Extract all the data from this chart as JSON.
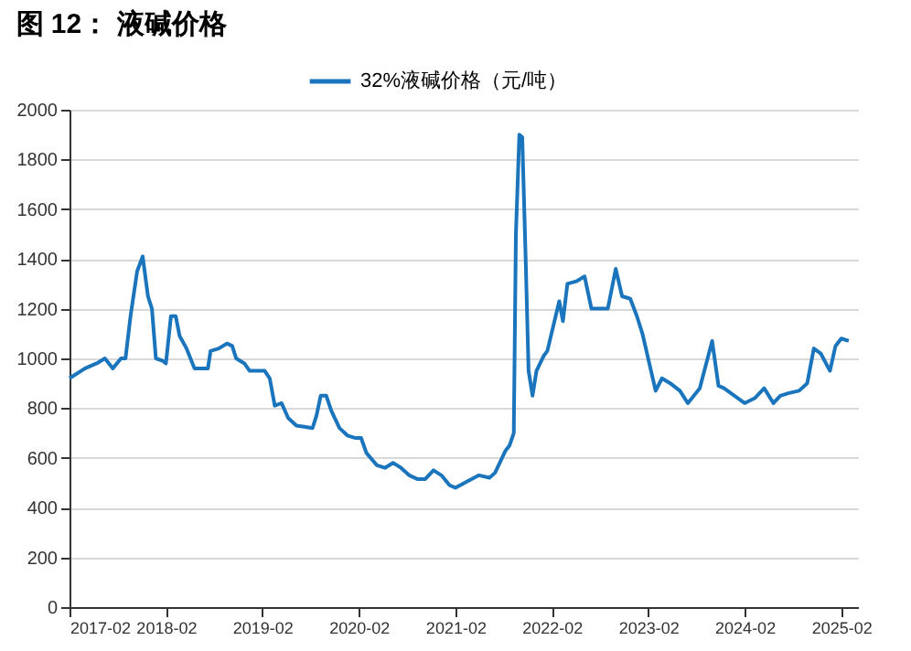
{
  "chart_data": {
    "type": "line",
    "title": "图 12：  液碱价格",
    "x": [
      "2017-02-01",
      "2017-04-01",
      "2017-05-15",
      "2017-06-15",
      "2017-07-15",
      "2017-08-15",
      "2017-09-01",
      "2017-09-20",
      "2017-10-15",
      "2017-11-05",
      "2017-11-25",
      "2017-12-10",
      "2017-12-25",
      "2018-01-20",
      "2018-02-01",
      "2018-02-20",
      "2018-03-10",
      "2018-03-25",
      "2018-04-20",
      "2018-05-20",
      "2018-06-20",
      "2018-07-10",
      "2018-07-20",
      "2018-08-20",
      "2018-09-20",
      "2018-10-10",
      "2018-10-25",
      "2018-11-25",
      "2018-12-15",
      "2019-01-15",
      "2019-02-10",
      "2019-03-01",
      "2019-03-20",
      "2019-04-15",
      "2019-05-10",
      "2019-06-10",
      "2019-07-10",
      "2019-08-10",
      "2019-08-25",
      "2019-09-10",
      "2019-10-01",
      "2019-10-20",
      "2019-11-20",
      "2019-12-20",
      "2020-01-20",
      "2020-02-10",
      "2020-03-01",
      "2020-04-10",
      "2020-05-10",
      "2020-06-10",
      "2020-07-10",
      "2020-08-10",
      "2020-09-10",
      "2020-10-10",
      "2020-11-10",
      "2020-12-10",
      "2021-01-10",
      "2021-02-01",
      "2021-05-01",
      "2021-06-10",
      "2021-07-01",
      "2021-08-10",
      "2021-08-25",
      "2021-09-10",
      "2021-09-18",
      "2021-10-01",
      "2021-10-12",
      "2021-10-25",
      "2021-11-05",
      "2021-11-20",
      "2021-12-05",
      "2022-01-01",
      "2022-01-15",
      "2022-03-01",
      "2022-03-15",
      "2022-04-01",
      "2022-05-05",
      "2022-06-05",
      "2022-07-01",
      "2022-09-01",
      "2022-10-01",
      "2022-10-25",
      "2022-11-25",
      "2022-12-20",
      "2023-01-10",
      "2023-03-01",
      "2023-03-25",
      "2023-04-25",
      "2023-06-01",
      "2023-07-01",
      "2023-08-15",
      "2023-10-01",
      "2023-10-25",
      "2023-11-15",
      "2024-02-01",
      "2024-03-10",
      "2024-04-15",
      "2024-05-20",
      "2024-06-15",
      "2024-07-15",
      "2024-08-25",
      "2024-09-25",
      "2024-10-20",
      "2024-11-15",
      "2024-12-20",
      "2025-01-10",
      "2025-02-01",
      "2025-03-01"
    ],
    "series": [
      {
        "name": "32%液碱价格（元/吨）",
        "color": "#1a75bc",
        "values": [
          920,
          960,
          980,
          1000,
          960,
          1000,
          1000,
          1170,
          1350,
          1410,
          1250,
          1200,
          1000,
          990,
          980,
          1170,
          1170,
          1090,
          1040,
          960,
          960,
          960,
          1030,
          1040,
          1060,
          1050,
          1000,
          980,
          950,
          950,
          950,
          920,
          810,
          820,
          760,
          730,
          725,
          720,
          770,
          850,
          850,
          790,
          720,
          690,
          680,
          680,
          620,
          570,
          560,
          580,
          560,
          530,
          515,
          515,
          550,
          530,
          490,
          480,
          530,
          520,
          540,
          630,
          650,
          700,
          1500,
          1900,
          1890,
          1400,
          950,
          850,
          950,
          1010,
          1030,
          1230,
          1150,
          1300,
          1310,
          1330,
          1200,
          1200,
          1360,
          1250,
          1240,
          1170,
          1100,
          870,
          920,
          900,
          870,
          820,
          880,
          1070,
          890,
          880,
          820,
          840,
          880,
          820,
          850,
          860,
          870,
          900,
          1040,
          1020,
          950,
          1050,
          1080,
          1070
        ]
      }
    ],
    "xlim": [
      "2017-02-01",
      "2025-04-05"
    ],
    "xticks": [
      "2017-02",
      "2018-02",
      "2019-02",
      "2020-02",
      "2021-02",
      "2022-02",
      "2023-02",
      "2024-02",
      "2025-02"
    ],
    "ylim": [
      0,
      2000
    ],
    "yticks": [
      0,
      200,
      400,
      600,
      800,
      1000,
      1200,
      1400,
      1600,
      1800,
      2000
    ],
    "grid": "y",
    "legend": "top",
    "line_style": "solid",
    "marker": "none"
  }
}
